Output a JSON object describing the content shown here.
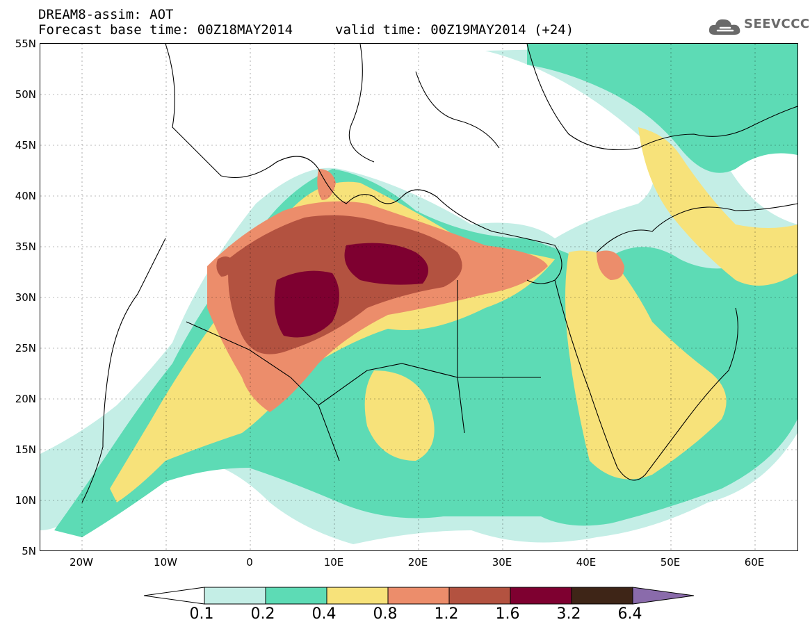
{
  "header": {
    "title_line1": "DREAM8-assim: AOT",
    "title_line2": "Forecast base time: 00Z18MAY2014",
    "valid_time": "valid time: 00Z19MAY2014 (+24)",
    "logo_text": "SEEVCCC",
    "logo_icon": "cloud-icon"
  },
  "axes": {
    "lat_labels": [
      "55N",
      "50N",
      "45N",
      "40N",
      "35N",
      "30N",
      "25N",
      "20N",
      "15N",
      "10N",
      "5N"
    ],
    "lon_labels": [
      "20W",
      "10W",
      "0",
      "10E",
      "20E",
      "30E",
      "40E",
      "50E",
      "60E"
    ],
    "lat_range": [
      5,
      55
    ],
    "lon_range": [
      -25,
      65
    ]
  },
  "legend": {
    "levels": [
      "0.1",
      "0.2",
      "0.4",
      "0.8",
      "1.2",
      "1.6",
      "3.2",
      "6.4"
    ],
    "colors": [
      "#ffffff",
      "#c4eee6",
      "#5ddbb5",
      "#f7e27a",
      "#ec8d6b",
      "#b35240",
      "#7e0030",
      "#3e2517",
      "#8a6bab"
    ]
  },
  "map_colors": {
    "c1": "#c4eee6",
    "c2": "#5ddbb5",
    "c3": "#f7e27a",
    "c4": "#ec8d6b",
    "c5": "#b35240",
    "c6": "#7e0030",
    "border": "#000000"
  }
}
